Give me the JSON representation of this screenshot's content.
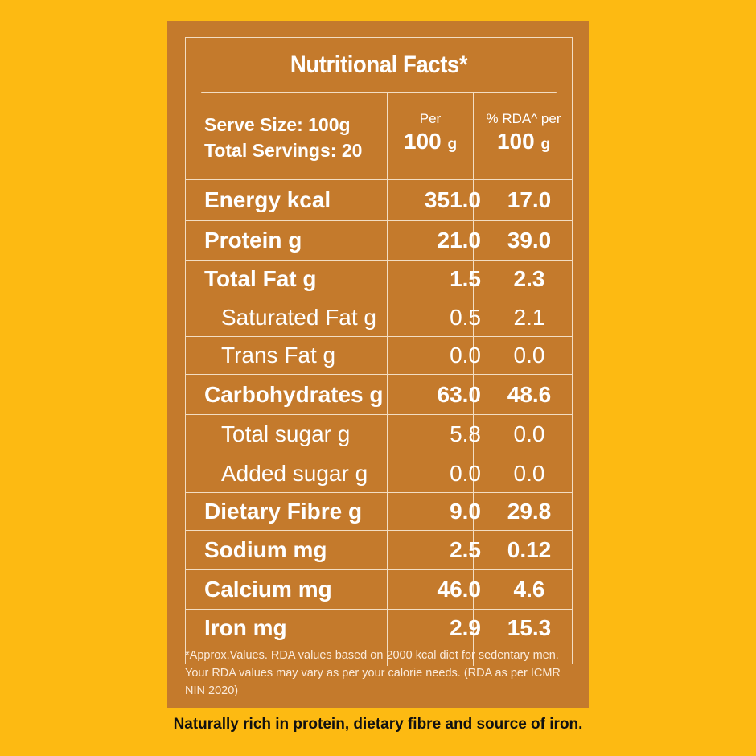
{
  "title": "Nutritional Facts*",
  "header": {
    "serve_size": "Serve Size: 100g",
    "total_servings": "Total Servings: 20",
    "col1_top": "Per",
    "col1_value": "100",
    "col1_unit": "g",
    "col2_top": "% RDA^ per",
    "col2_value": "100",
    "col2_unit": "g"
  },
  "rows": [
    {
      "name": "Energy kcal",
      "per100": "351.0",
      "rda": "17.0"
    },
    {
      "name": "Protein g",
      "per100": "21.0",
      "rda": "39.0"
    },
    {
      "name": "Total Fat g",
      "per100": "1.5",
      "rda": "2.3"
    },
    {
      "name": "Saturated Fat g",
      "per100": "0.5",
      "rda": "2.1"
    },
    {
      "name": "Trans Fat g",
      "per100": "0.0",
      "rda": "0.0"
    },
    {
      "name": "Carbohydrates g",
      "per100": "63.0",
      "rda": "48.6"
    },
    {
      "name": "Total sugar g",
      "per100": "5.8",
      "rda": "0.0"
    },
    {
      "name": "Added sugar g",
      "per100": "0.0",
      "rda": "0.0"
    },
    {
      "name": "Dietary Fibre g",
      "per100": "9.0",
      "rda": "29.8"
    },
    {
      "name": "Sodium mg",
      "per100": "2.5",
      "rda": "0.12"
    },
    {
      "name": "Calcium mg",
      "per100": "46.0",
      "rda": "4.6"
    },
    {
      "name": "Iron mg",
      "per100": "2.9",
      "rda": "15.3"
    }
  ],
  "footnote": "*Approx.Values. RDA values based on 2000 kcal diet for sedentary men. Your RDA values may vary as per your calorie needs. (RDA as per ICMR NIN 2020)",
  "tagline": "Naturally rich in protein, dietary fibre and source of iron.",
  "colors": {
    "background": "#FDBA12",
    "panel": "#C47A2C",
    "lines": "#F3DDC2"
  }
}
